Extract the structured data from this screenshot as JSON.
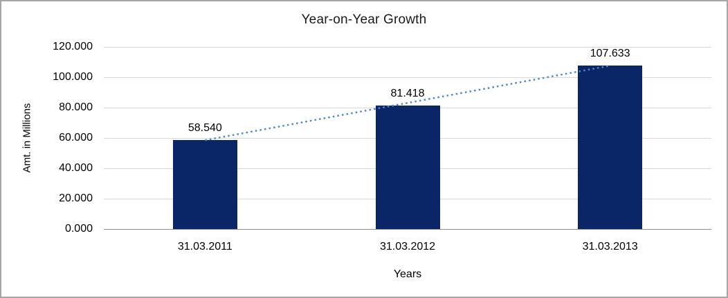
{
  "chart_data": {
    "type": "bar",
    "title": "Year-on-Year Growth",
    "xlabel": "Years",
    "ylabel": "Amt. in Millions",
    "categories": [
      "31.03.2011",
      "31.03.2012",
      "31.03.2013"
    ],
    "values": [
      58.54,
      81.418,
      107.633
    ],
    "value_labels": [
      "58.540",
      "81.418",
      "107.633"
    ],
    "y_ticks": [
      {
        "value": 0,
        "label": "0.000"
      },
      {
        "value": 20,
        "label": "20.000"
      },
      {
        "value": 40,
        "label": "40.000"
      },
      {
        "value": 60,
        "label": "60.000"
      },
      {
        "value": 80,
        "label": "80.000"
      },
      {
        "value": 100,
        "label": "100.000"
      },
      {
        "value": 120,
        "label": "120.000"
      }
    ],
    "ylim": [
      0,
      120
    ],
    "grid": true,
    "legend": "none",
    "trendline": {
      "type": "linear",
      "style": "dotted",
      "from_category_index": 0,
      "to_category_index": 2
    },
    "colors": {
      "bar": "#0b2666",
      "trendline": "#4e8ac8",
      "gridline": "#d9d9d9",
      "axis_line": "#8c8c8c",
      "text": "#000000",
      "frame_border": "#a6a6a6",
      "background": "#ffffff"
    }
  }
}
